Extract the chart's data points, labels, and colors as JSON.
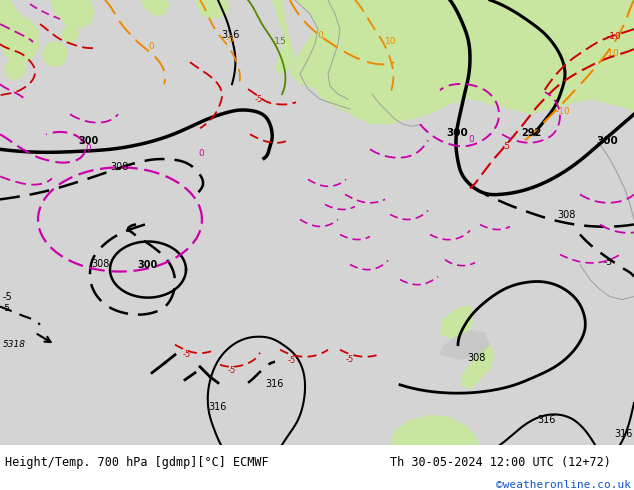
{
  "title_left": "Height/Temp. 700 hPa [gdmp][°C] ECMWF",
  "title_right": "Th 30-05-2024 12:00 UTC (12+72)",
  "credit": "©weatheronline.co.uk",
  "fig_width": 6.34,
  "fig_height": 4.9,
  "dpi": 100,
  "footer_bg": "#d0d0d0",
  "map_bg_light_gray": "#d8d8d8",
  "map_bg_green": "#c8e6a0",
  "map_coastline_gray": "#a0a0a0",
  "title_fontsize": 8.5,
  "credit_fontsize": 8.0,
  "credit_color": "#1155cc",
  "black": "#000000",
  "red": "#cc0000",
  "orange": "#ee8800",
  "magenta": "#cc00aa",
  "green_line": "#558800"
}
